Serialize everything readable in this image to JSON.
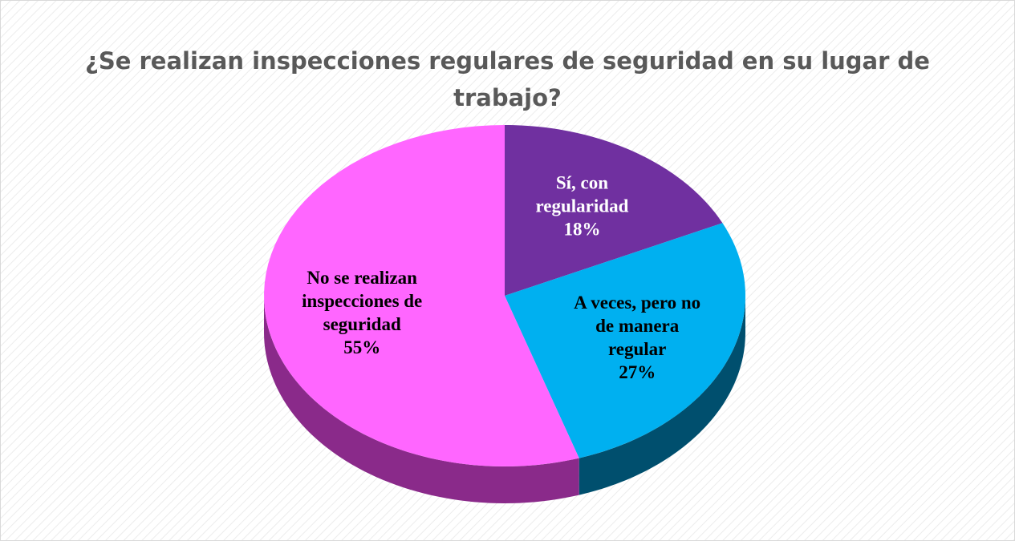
{
  "chart_data": {
    "type": "pie",
    "title": "¿Se realizan inspecciones regulares de seguridad en su lugar de trabajo?",
    "categories": [
      "Sí, con regularidad",
      "A veces, pero no de manera regular",
      "No se realizan inspecciones de seguridad"
    ],
    "values": [
      18,
      27,
      55
    ],
    "value_labels": [
      "18%",
      "27%",
      "55%"
    ],
    "colors": [
      "#7030a0",
      "#00b0f0",
      "#ff66ff"
    ],
    "side_colors": [
      "#4b1f6e",
      "#004f6e",
      "#8a2a8a"
    ],
    "label_colors": [
      "#ffffff",
      "#000000",
      "#000000"
    ]
  }
}
